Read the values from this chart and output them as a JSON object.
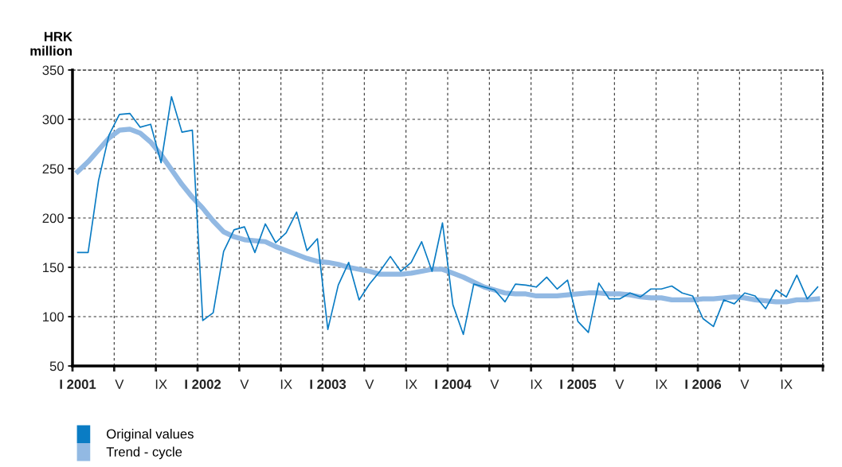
{
  "chart_data": {
    "type": "line",
    "ylabel": "HRK\nmillion",
    "categories": [
      "I 2001",
      null,
      null,
      null,
      "V",
      null,
      null,
      null,
      "IX",
      null,
      null,
      null,
      "I 2002",
      null,
      null,
      null,
      "V",
      null,
      null,
      null,
      "IX",
      null,
      null,
      null,
      "I 2003",
      null,
      null,
      null,
      "V",
      null,
      null,
      null,
      "IX",
      null,
      null,
      null,
      "I 2004",
      null,
      null,
      null,
      "V",
      null,
      null,
      null,
      "IX",
      null,
      null,
      null,
      "I 2005",
      null,
      null,
      null,
      "V",
      null,
      null,
      null,
      "IX",
      null,
      null,
      null,
      "I 2006",
      null,
      null,
      null,
      "V",
      null,
      null,
      null,
      "IX",
      null,
      null,
      null
    ],
    "series": [
      {
        "name": "Original values",
        "color": "#0a7cc4",
        "values": [
          165,
          165,
          238,
          284,
          305,
          306,
          292,
          295,
          256,
          323,
          287,
          289,
          96,
          104,
          166,
          188,
          191,
          165,
          194,
          175,
          185,
          206,
          167,
          179,
          87,
          132,
          155,
          117,
          133,
          146,
          161,
          146,
          155,
          176,
          146,
          195,
          112,
          82,
          133,
          130,
          127,
          115,
          133,
          132,
          130,
          140,
          128,
          137,
          95,
          84,
          134,
          118,
          118,
          124,
          120,
          128,
          128,
          131,
          124,
          121,
          98,
          90,
          117,
          113,
          124,
          121,
          108,
          127,
          120,
          142,
          118,
          130
        ]
      },
      {
        "name": "Trend - cycle",
        "color": "#92b9e3",
        "values": [
          247,
          257,
          269,
          281,
          289,
          290,
          286,
          277,
          264,
          249,
          234,
          221,
          210,
          197,
          186,
          181,
          178,
          177,
          176,
          171,
          167,
          163,
          159,
          156,
          155,
          153,
          150,
          148,
          146,
          143,
          143,
          143,
          144,
          146,
          148,
          148,
          144,
          140,
          135,
          130,
          127,
          124,
          123,
          123,
          121,
          121,
          121,
          122,
          123,
          124,
          124,
          123,
          123,
          122,
          120,
          119,
          119,
          117,
          117,
          117,
          118,
          118,
          119,
          120,
          119,
          117,
          116,
          115,
          115,
          117,
          117,
          118
        ]
      }
    ],
    "ylim": [
      50,
      350
    ],
    "yticks": [
      50,
      100,
      150,
      200,
      250,
      300,
      350
    ],
    "grid": true,
    "legend": "bottom left",
    "marker": "none",
    "line_style": "solid"
  }
}
